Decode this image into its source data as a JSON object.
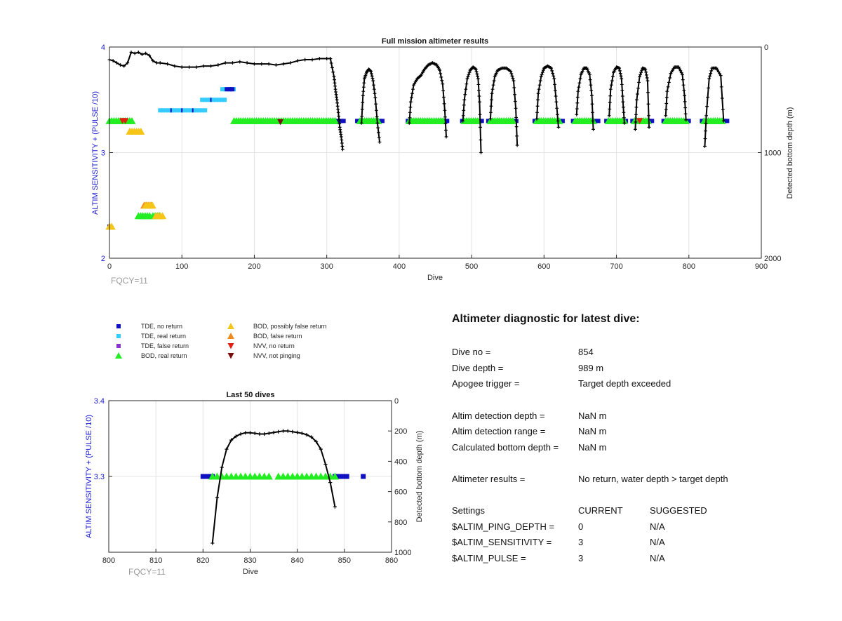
{
  "chart_data": [
    {
      "type": "scatter",
      "title": "Full mission altimeter results",
      "xlabel": "Dive",
      "ylabel": "ALTIM SENSITIVITY + (PULSE /10)",
      "y2label": "Detected bottom depth (m)",
      "xlim": [
        0,
        900
      ],
      "ylim": [
        2,
        4
      ],
      "y2lim": [
        0,
        2000
      ],
      "y2_reversed": true,
      "x_ticks": [
        "0",
        "100",
        "200",
        "300",
        "400",
        "500",
        "600",
        "700",
        "800",
        "900"
      ],
      "y_ticks": [
        "2",
        "3",
        "4"
      ],
      "y2_ticks": [
        "0",
        "1000",
        "2000"
      ],
      "grid": true,
      "note": "FQCY=11",
      "colors": {
        "tde_no": "#1010c0",
        "tde_real": "#33ccff",
        "tde_false": "#8833cc",
        "bod_real": "#22ee22",
        "bod_possible": "#f5c518",
        "bod_false": "#f08a1c",
        "nvv_no": "#e02010",
        "nvv_np": "#7a0e0e",
        "depth_line": "#000000"
      },
      "segments": [
        {
          "marker": "tde_no",
          "x0": 0,
          "x1": 2,
          "y": 2.3
        },
        {
          "marker": "tde_real",
          "x0": 70,
          "x1": 132,
          "y": 3.4
        },
        {
          "marker": "tde_real",
          "x0": 128,
          "x1": 162,
          "y": 3.5
        },
        {
          "marker": "tde_real",
          "x0": 156,
          "x1": 172,
          "y": 3.6
        },
        {
          "marker": "tde_no",
          "x0": 162,
          "x1": 172,
          "y": 3.6
        },
        {
          "marker": "tde_no",
          "x0": 300,
          "x1": 325,
          "y": 3.3
        },
        {
          "marker": "tde_no",
          "x0": 342,
          "x1": 378,
          "y": 3.3
        },
        {
          "marker": "tde_no",
          "x0": 412,
          "x1": 468,
          "y": 3.3
        },
        {
          "marker": "tde_no",
          "x0": 487,
          "x1": 516,
          "y": 3.3
        },
        {
          "marker": "tde_no",
          "x0": 523,
          "x1": 565,
          "y": 3.3
        },
        {
          "marker": "tde_no",
          "x0": 587,
          "x1": 627,
          "y": 3.3
        },
        {
          "marker": "tde_no",
          "x0": 640,
          "x1": 676,
          "y": 3.3
        },
        {
          "marker": "tde_no",
          "x0": 686,
          "x1": 716,
          "y": 3.3
        },
        {
          "marker": "tde_no",
          "x0": 722,
          "x1": 752,
          "y": 3.3
        },
        {
          "marker": "tde_no",
          "x0": 765,
          "x1": 800,
          "y": 3.3
        },
        {
          "marker": "tde_no",
          "x0": 818,
          "x1": 854,
          "y": 3.3
        },
        {
          "marker": "bod_real",
          "x0": 0,
          "x1": 34,
          "y": 3.3
        },
        {
          "marker": "bod_real",
          "x0": 172,
          "x1": 312,
          "y": 3.3
        },
        {
          "marker": "bod_real",
          "x0": 346,
          "x1": 372,
          "y": 3.3
        },
        {
          "marker": "bod_real",
          "x0": 414,
          "x1": 462,
          "y": 3.3
        },
        {
          "marker": "bod_real",
          "x0": 490,
          "x1": 510,
          "y": 3.3
        },
        {
          "marker": "bod_real",
          "x0": 526,
          "x1": 560,
          "y": 3.3
        },
        {
          "marker": "bod_real",
          "x0": 590,
          "x1": 622,
          "y": 3.3
        },
        {
          "marker": "bod_real",
          "x0": 643,
          "x1": 670,
          "y": 3.3
        },
        {
          "marker": "bod_real",
          "x0": 689,
          "x1": 712,
          "y": 3.3
        },
        {
          "marker": "bod_real",
          "x0": 725,
          "x1": 746,
          "y": 3.3
        },
        {
          "marker": "bod_real",
          "x0": 768,
          "x1": 796,
          "y": 3.3
        },
        {
          "marker": "bod_real",
          "x0": 821,
          "x1": 848,
          "y": 3.3
        },
        {
          "marker": "bod_possible",
          "x0": 0,
          "x1": 4,
          "y": 2.3
        },
        {
          "marker": "bod_possible",
          "x0": 28,
          "x1": 44,
          "y": 3.2
        },
        {
          "marker": "bod_false",
          "x0": 48,
          "x1": 60,
          "y": 2.5
        },
        {
          "marker": "bod_possible",
          "x0": 50,
          "x1": 62,
          "y": 2.5
        },
        {
          "marker": "bod_real",
          "x0": 40,
          "x1": 56,
          "y": 2.4
        },
        {
          "marker": "bod_real",
          "x0": 60,
          "x1": 72,
          "y": 2.4
        },
        {
          "marker": "bod_possible",
          "x0": 64,
          "x1": 74,
          "y": 2.4
        }
      ],
      "points": [
        {
          "marker": "nvv_no",
          "x": 18,
          "y": 3.3
        },
        {
          "marker": "nvv_no",
          "x": 22,
          "y": 3.3
        },
        {
          "marker": "nvv_np",
          "x": 236,
          "y": 3.29
        },
        {
          "marker": "nvv_no",
          "x": 732,
          "y": 3.3
        }
      ],
      "depth_surface": {
        "x": [
          0,
          5,
          10,
          15,
          20,
          25,
          30,
          35,
          40,
          45,
          50,
          55,
          60,
          65,
          70,
          80,
          90,
          100,
          110,
          120,
          130,
          140,
          150,
          160,
          170,
          180,
          190,
          200,
          210,
          220,
          230,
          240,
          250,
          260,
          270,
          280,
          290,
          300,
          305
        ],
        "depth": [
          120,
          130,
          150,
          170,
          180,
          150,
          50,
          60,
          50,
          70,
          60,
          80,
          130,
          150,
          150,
          160,
          180,
          190,
          190,
          190,
          180,
          180,
          170,
          150,
          150,
          140,
          150,
          160,
          160,
          160,
          170,
          160,
          150,
          130,
          120,
          120,
          110,
          110,
          110
        ]
      },
      "depth_dives": [
        {
          "x": [
            305,
            310,
            312,
            314,
            316,
            318,
            320,
            322
          ],
          "depth": [
            110,
            280,
            400,
            500,
            620,
            760,
            850,
            970
          ]
        },
        {
          "x": [
            348,
            350,
            352,
            355,
            358,
            361,
            364,
            367,
            370,
            373
          ],
          "depth": [
            720,
            460,
            300,
            240,
            210,
            230,
            320,
            480,
            720,
            900
          ]
        },
        {
          "x": [
            414,
            416,
            420,
            425,
            430,
            435,
            440,
            446,
            452,
            456,
            460,
            463,
            465
          ],
          "depth": [
            720,
            520,
            360,
            300,
            270,
            210,
            170,
            150,
            170,
            220,
            350,
            600,
            850
          ]
        },
        {
          "x": [
            488,
            490,
            494,
            498,
            502,
            506,
            509,
            511,
            513
          ],
          "depth": [
            700,
            500,
            300,
            220,
            190,
            210,
            300,
            520,
            1000
          ]
        },
        {
          "x": [
            526,
            528,
            532,
            536,
            542,
            548,
            554,
            558,
            561,
            563
          ],
          "depth": [
            680,
            440,
            280,
            220,
            200,
            200,
            230,
            320,
            580,
            930
          ]
        },
        {
          "x": [
            590,
            592,
            596,
            600,
            605,
            610,
            614,
            617,
            620
          ],
          "depth": [
            680,
            440,
            280,
            200,
            180,
            200,
            300,
            520,
            760
          ]
        },
        {
          "x": [
            645,
            647,
            651,
            655,
            659,
            663,
            666,
            668
          ],
          "depth": [
            640,
            420,
            260,
            200,
            200,
            260,
            460,
            780
          ]
        },
        {
          "x": [
            690,
            692,
            696,
            700,
            704,
            707,
            709,
            711
          ],
          "depth": [
            650,
            400,
            240,
            190,
            200,
            300,
            520,
            720
          ]
        },
        {
          "x": [
            726,
            728,
            732,
            736,
            740,
            743,
            745
          ],
          "depth": [
            780,
            500,
            280,
            200,
            210,
            320,
            760
          ]
        },
        {
          "x": [
            768,
            770,
            775,
            780,
            786,
            791,
            794,
            796
          ],
          "depth": [
            650,
            420,
            250,
            190,
            190,
            260,
            460,
            690
          ]
        },
        {
          "x": [
            822,
            824,
            828,
            832,
            838,
            844,
            848
          ],
          "depth": [
            940,
            650,
            300,
            200,
            200,
            270,
            700
          ]
        }
      ]
    },
    {
      "type": "scatter",
      "title": "Last 50 dives",
      "xlabel": "Dive",
      "ylabel": "ALTIM SENSITIVITY + (PULSE /10)",
      "y2label": "Detected bottom depth (m)",
      "xlim": [
        800,
        860
      ],
      "ylim": [
        3.2,
        3.4
      ],
      "y2lim": [
        0,
        1000
      ],
      "y2_reversed": true,
      "x_ticks": [
        "800",
        "810",
        "820",
        "830",
        "840",
        "850",
        "860"
      ],
      "y_ticks": [
        "3.3",
        "3.4"
      ],
      "y2_ticks": [
        "0",
        "200",
        "400",
        "600",
        "800",
        "1000"
      ],
      "grid": true,
      "note": "FQCY=11",
      "tde_no_x": [
        820,
        820.5,
        821,
        821.5,
        822,
        848,
        848.5,
        849,
        849.5,
        850,
        850.5,
        854
      ],
      "bod_real_x": [
        822,
        823,
        824,
        825,
        826,
        827,
        828,
        829,
        830,
        831,
        832,
        833,
        834,
        836,
        837,
        838,
        839,
        840,
        841,
        842,
        843,
        844,
        845,
        846,
        847,
        848
      ],
      "y": 3.3,
      "depth_line": {
        "x": [
          822,
          823,
          824,
          825,
          826,
          827,
          828,
          829,
          830,
          831,
          832,
          833,
          834,
          835,
          836,
          837,
          838,
          839,
          840,
          841,
          842,
          843,
          844,
          845,
          846,
          847,
          848
        ],
        "depth": [
          940,
          640,
          440,
          320,
          260,
          235,
          220,
          212,
          212,
          215,
          220,
          220,
          215,
          210,
          205,
          200,
          200,
          205,
          210,
          215,
          225,
          240,
          270,
          320,
          420,
          540,
          700
        ]
      }
    }
  ],
  "legend": [
    {
      "label": "TDE, no return",
      "marker": "tde_no"
    },
    {
      "label": "TDE, real return",
      "marker": "tde_real"
    },
    {
      "label": "TDE, false return",
      "marker": "tde_false"
    },
    {
      "label": "BOD, real return",
      "marker": "bod_real"
    },
    {
      "label": "BOD, possibly false return",
      "marker": "bod_possible"
    },
    {
      "label": "BOD, false return",
      "marker": "bod_false"
    },
    {
      "label": "NVV, no return",
      "marker": "nvv_no"
    },
    {
      "label": "NVV, not pinging",
      "marker": "nvv_np"
    }
  ],
  "diagnostic": {
    "title": "Altimeter diagnostic for latest dive:",
    "dive_no_label": "Dive no =",
    "dive_no_value": "854",
    "dive_depth_label": "Dive depth =",
    "dive_depth_value": "989 m",
    "apogee_label": "Apogee trigger =",
    "apogee_value": "Target depth exceeded",
    "det_depth_label": "Altim detection depth =",
    "det_depth_value": "NaN m",
    "det_range_label": "Altim detection range =",
    "det_range_value": "NaN m",
    "calc_bottom_label": "Calculated bottom depth =",
    "calc_bottom_value": "NaN m",
    "results_label": "Altimeter results =",
    "results_value": "No return, water depth > target depth",
    "settings_label": "Settings",
    "current_label": "CURRENT",
    "suggested_label": "SUGGESTED",
    "ping_depth_label": "$ALTIM_PING_DEPTH =",
    "ping_depth_current": "0",
    "ping_depth_suggested": "N/A",
    "sensitivity_label": "$ALTIM_SENSITIVITY =",
    "sensitivity_current": "3",
    "sensitivity_suggested": "N/A",
    "pulse_label": "$ALTIM_PULSE =",
    "pulse_current": "3",
    "pulse_suggested": "N/A"
  }
}
